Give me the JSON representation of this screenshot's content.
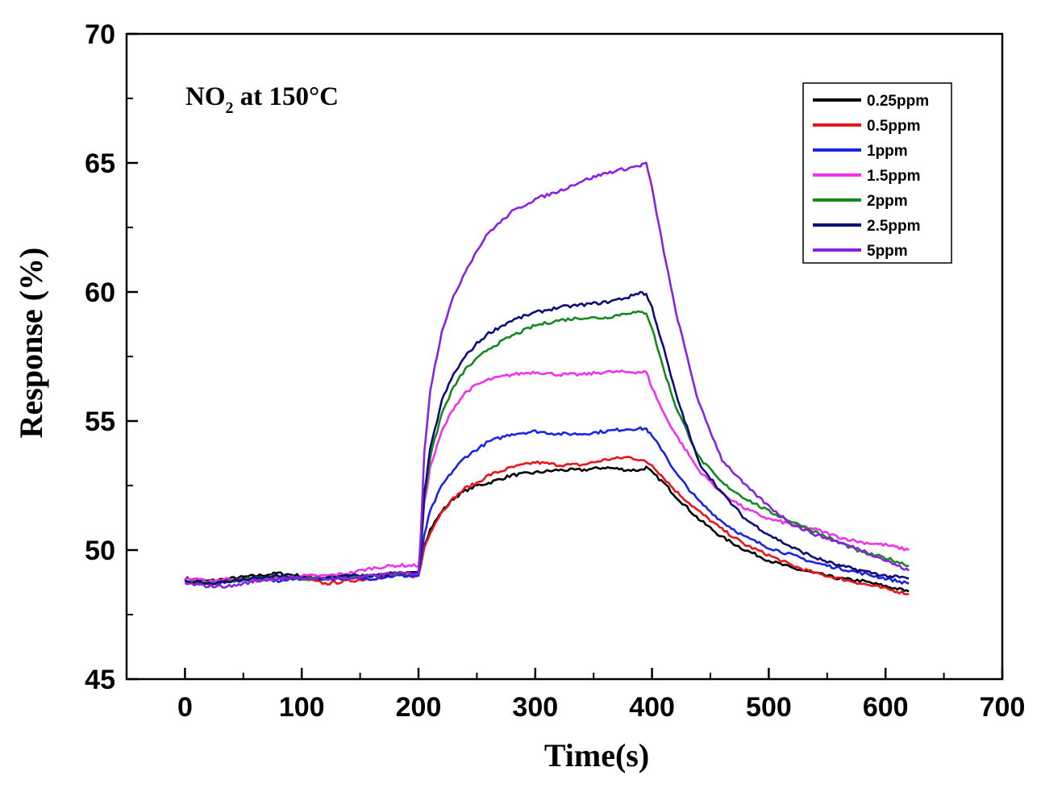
{
  "chart_data": {
    "type": "line",
    "title": "",
    "annotation": {
      "prefix": "NO",
      "subscript": "2",
      "suffix": " at 150°C"
    },
    "xlabel": "Time(s)",
    "ylabel": "Response (%)",
    "xlim": [
      -50,
      700
    ],
    "ylim": [
      45,
      70
    ],
    "xticks": [
      0,
      100,
      200,
      300,
      400,
      500,
      600,
      700
    ],
    "yticks": [
      45,
      50,
      55,
      60,
      65,
      70
    ],
    "grid": false,
    "legend_position": "top-right",
    "x": [
      0,
      20,
      40,
      60,
      80,
      100,
      120,
      140,
      160,
      180,
      200,
      202,
      205,
      210,
      220,
      230,
      240,
      250,
      260,
      280,
      300,
      320,
      340,
      360,
      380,
      390,
      395,
      400,
      410,
      420,
      440,
      460,
      480,
      500,
      520,
      540,
      560,
      580,
      600,
      620
    ],
    "series": [
      {
        "name": "0.25ppm",
        "color": "#000000",
        "values": [
          48.9,
          48.8,
          48.9,
          49.0,
          49.1,
          49.0,
          48.9,
          49.0,
          49.0,
          49.1,
          49.1,
          49.5,
          50.2,
          50.8,
          51.5,
          52.0,
          52.3,
          52.5,
          52.6,
          52.9,
          53.0,
          53.1,
          53.1,
          53.2,
          53.1,
          53.1,
          53.2,
          53.0,
          52.6,
          52.1,
          51.2,
          50.5,
          50.0,
          49.6,
          49.3,
          49.1,
          48.9,
          48.8,
          48.6,
          48.4
        ]
      },
      {
        "name": "0.5ppm",
        "color": "#e8141c",
        "values": [
          48.8,
          48.7,
          48.8,
          48.9,
          48.9,
          48.9,
          48.7,
          48.8,
          48.9,
          49.0,
          49.0,
          49.4,
          50.1,
          50.7,
          51.5,
          52.0,
          52.4,
          52.6,
          52.9,
          53.2,
          53.4,
          53.3,
          53.3,
          53.5,
          53.6,
          53.5,
          53.4,
          53.3,
          52.8,
          52.3,
          51.5,
          50.8,
          50.2,
          49.8,
          49.4,
          49.1,
          48.9,
          48.7,
          48.5,
          48.3
        ]
      },
      {
        "name": "1ppm",
        "color": "#1a23e6",
        "values": [
          48.8,
          48.7,
          48.8,
          48.9,
          48.8,
          48.9,
          48.9,
          48.9,
          48.9,
          49.0,
          49.0,
          49.6,
          50.6,
          51.5,
          52.5,
          53.1,
          53.6,
          53.9,
          54.2,
          54.5,
          54.6,
          54.5,
          54.5,
          54.6,
          54.7,
          54.7,
          54.7,
          54.4,
          53.8,
          53.0,
          51.9,
          51.1,
          50.5,
          50.1,
          49.8,
          49.5,
          49.3,
          49.1,
          48.9,
          48.7
        ]
      },
      {
        "name": "1.5ppm",
        "color": "#f230f2",
        "values": [
          48.9,
          48.8,
          48.9,
          48.8,
          48.9,
          49.0,
          49.0,
          49.1,
          49.3,
          49.4,
          49.4,
          50.1,
          51.8,
          53.2,
          54.6,
          55.5,
          56.1,
          56.4,
          56.6,
          56.8,
          56.9,
          56.8,
          56.8,
          56.9,
          56.9,
          56.9,
          56.9,
          56.3,
          55.3,
          54.5,
          53.1,
          52.2,
          51.6,
          51.2,
          51.0,
          50.8,
          50.5,
          50.3,
          50.2,
          50.0
        ]
      },
      {
        "name": "2ppm",
        "color": "#16891e",
        "values": [
          48.8,
          48.7,
          48.8,
          48.9,
          49.0,
          48.9,
          48.9,
          49.0,
          49.0,
          49.1,
          49.1,
          50.0,
          52.0,
          53.6,
          55.3,
          56.3,
          57.0,
          57.4,
          57.8,
          58.3,
          58.7,
          58.9,
          59.0,
          59.0,
          59.2,
          59.2,
          59.2,
          58.6,
          57.0,
          55.6,
          53.6,
          52.6,
          52.0,
          51.5,
          51.1,
          50.7,
          50.3,
          49.9,
          49.7,
          49.4
        ]
      },
      {
        "name": "2.5ppm",
        "color": "#0d0d7a",
        "values": [
          48.8,
          48.7,
          48.8,
          48.9,
          49.0,
          48.9,
          48.9,
          49.0,
          49.0,
          49.1,
          49.1,
          50.1,
          52.2,
          53.9,
          55.8,
          56.8,
          57.5,
          58.0,
          58.4,
          58.9,
          59.2,
          59.4,
          59.5,
          59.6,
          59.8,
          60.0,
          59.9,
          59.4,
          57.8,
          56.1,
          53.4,
          52.2,
          51.2,
          50.6,
          50.1,
          49.7,
          49.4,
          49.2,
          49.0,
          48.9
        ]
      },
      {
        "name": "5ppm",
        "color": "#8a22e0",
        "values": [
          48.7,
          48.6,
          48.6,
          48.8,
          48.9,
          48.9,
          48.9,
          48.9,
          49.0,
          49.1,
          49.1,
          50.6,
          53.8,
          56.2,
          58.5,
          59.8,
          60.8,
          61.6,
          62.3,
          63.1,
          63.6,
          63.9,
          64.3,
          64.6,
          64.8,
          64.9,
          65.0,
          64.0,
          61.6,
          59.3,
          55.7,
          53.5,
          52.5,
          51.7,
          51.0,
          50.6,
          50.3,
          50.0,
          49.6,
          49.2
        ]
      }
    ]
  }
}
